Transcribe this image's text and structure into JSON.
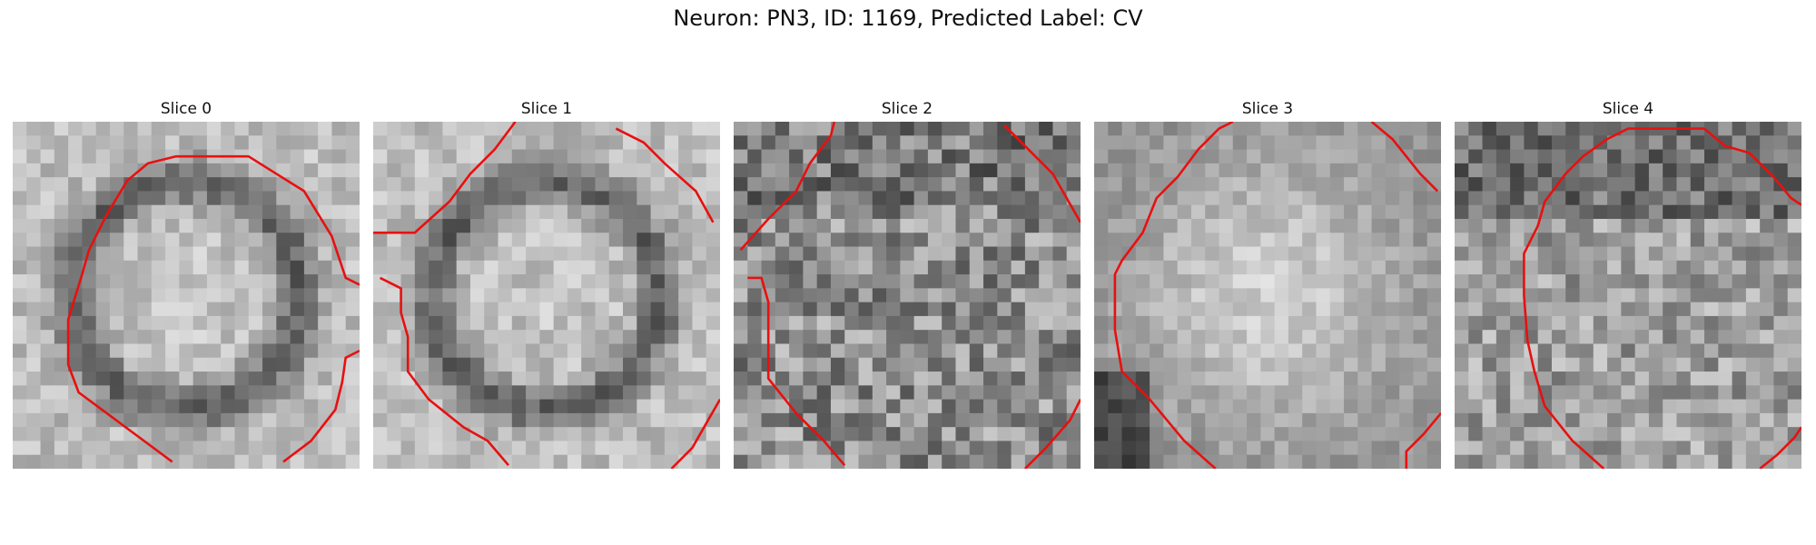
{
  "figure": {
    "title": "Neuron: PN3, ID: 1169, Predicted Label: CV",
    "contour_color": "#e81010"
  },
  "panels": [
    {
      "title": "Slice 0",
      "pattern": "dark-ring"
    },
    {
      "title": "Slice 1",
      "pattern": "dark-ring"
    },
    {
      "title": "Slice 2",
      "pattern": "noisy"
    },
    {
      "title": "Slice 3",
      "pattern": "bright-blob"
    },
    {
      "title": "Slice 4",
      "pattern": "dark-top"
    }
  ]
}
